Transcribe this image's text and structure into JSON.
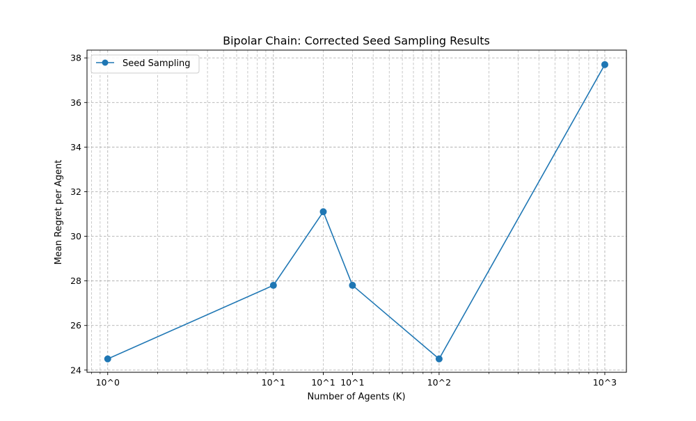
{
  "chart_data": {
    "type": "line",
    "title": "Bipolar Chain: Corrected Seed Sampling Results",
    "xlabel": "Number of Agents (K)",
    "ylabel": "Mean Regret per Agent",
    "xscale": "log",
    "xlim": [
      0.75,
      1350
    ],
    "ylim": [
      23.9,
      38.35
    ],
    "x_ticks": [
      {
        "value": 1,
        "label": "10^0"
      },
      {
        "value": 10,
        "label": "10^1"
      },
      {
        "value": 20,
        "label": "10^1"
      },
      {
        "value": 30,
        "label": "10^1"
      },
      {
        "value": 100,
        "label": "10^2"
      },
      {
        "value": 1000,
        "label": "10^3"
      }
    ],
    "y_ticks": [
      24,
      26,
      28,
      30,
      32,
      34,
      36,
      38
    ],
    "grid": true,
    "grid_style": "dashed",
    "legend_position": "top-left",
    "series": [
      {
        "name": "Seed Sampling",
        "color": "#1f77b4",
        "marker": "circle",
        "x": [
          1,
          10,
          20,
          30,
          100,
          1000
        ],
        "y": [
          24.5,
          27.8,
          31.1,
          27.8,
          24.5,
          37.7
        ]
      }
    ]
  }
}
